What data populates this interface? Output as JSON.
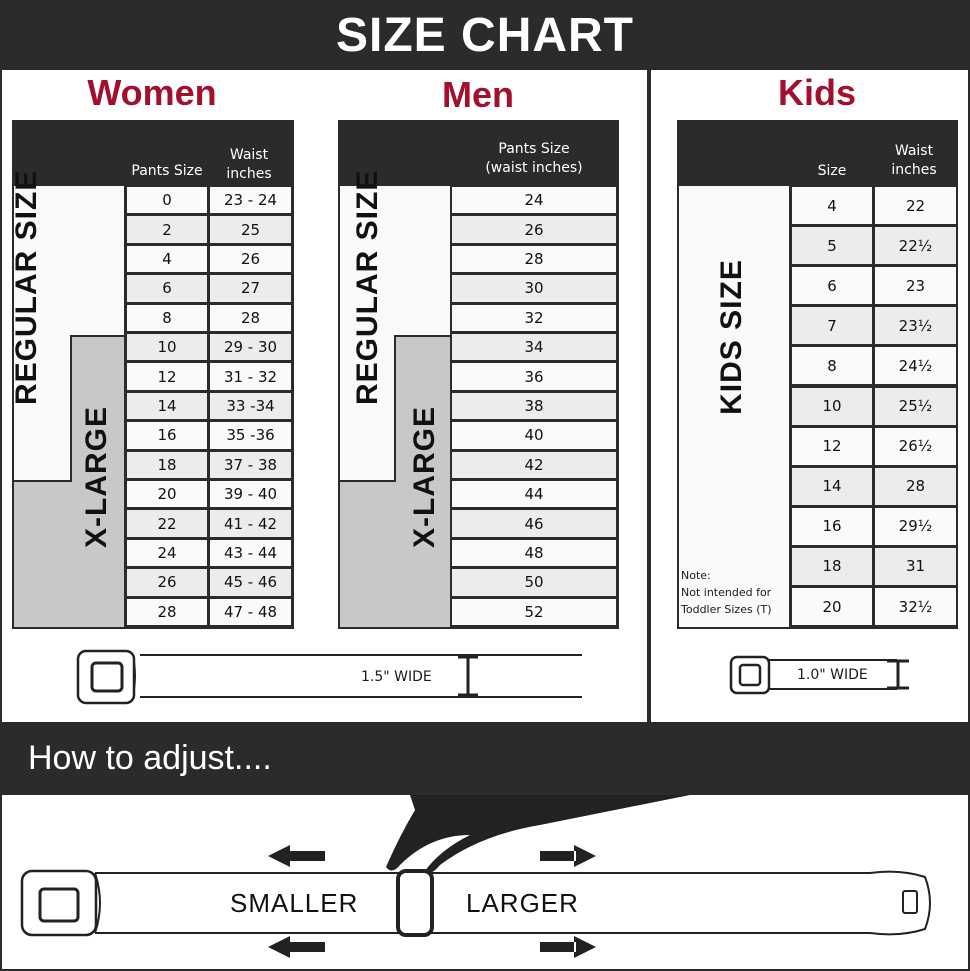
{
  "title": "SIZE CHART",
  "women": {
    "title": "Women",
    "col_headers": [
      "Pants Size",
      "Waist inches"
    ],
    "regular_label": "REGULAR SIZE",
    "xlarge_label": "X-LARGE",
    "rows": [
      [
        "0",
        "23 - 24"
      ],
      [
        "2",
        "25"
      ],
      [
        "4",
        "26"
      ],
      [
        "6",
        "27"
      ],
      [
        "8",
        "28"
      ],
      [
        "10",
        "29 - 30"
      ],
      [
        "12",
        "31 - 32"
      ],
      [
        "14",
        "33 -34"
      ],
      [
        "16",
        "35 -36"
      ],
      [
        "18",
        "37 - 38"
      ],
      [
        "20",
        "39 - 40"
      ],
      [
        "22",
        "41 - 42"
      ],
      [
        "24",
        "43 - 44"
      ],
      [
        "26",
        "45 - 46"
      ],
      [
        "28",
        "47 - 48"
      ]
    ]
  },
  "men": {
    "title": "Men",
    "col_header": "Pants Size (waist inches)",
    "regular_label": "REGULAR SIZE",
    "xlarge_label": "X-LARGE",
    "rows": [
      "24",
      "26",
      "28",
      "30",
      "32",
      "34",
      "36",
      "38",
      "40",
      "42",
      "44",
      "46",
      "48",
      "50",
      "52"
    ]
  },
  "kids": {
    "title": "Kids",
    "col_headers": [
      "Size",
      "Waist inches"
    ],
    "label": "KIDS SIZE",
    "note_title": "Note:",
    "note_text": "Not intended for Toddler Sizes (T)",
    "rows": [
      [
        "4",
        "22"
      ],
      [
        "5",
        "22½"
      ],
      [
        "6",
        "23"
      ],
      [
        "7",
        "23½"
      ],
      [
        "8",
        "24½"
      ],
      [
        "10",
        "25½"
      ],
      [
        "12",
        "26½"
      ],
      [
        "14",
        "28"
      ],
      [
        "16",
        "29½"
      ],
      [
        "18",
        "31"
      ],
      [
        "20",
        "32½"
      ]
    ]
  },
  "adult_belt_width": "1.5\" WIDE",
  "kids_belt_width": "1.0\" WIDE",
  "adjust": {
    "title": "How to adjust....",
    "smaller": "SMALLER",
    "larger": "LARGER"
  },
  "colors": {
    "accent": "#a3102e",
    "dark": "#2b2b2b"
  }
}
